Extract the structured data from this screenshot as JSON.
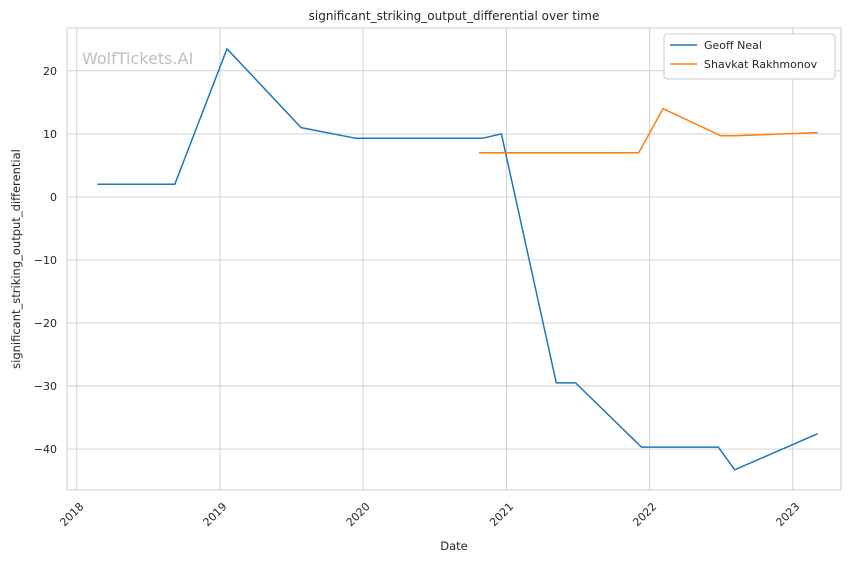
{
  "chart_data": {
    "type": "line",
    "title": "significant_striking_output_differential over time",
    "xlabel": "Date",
    "ylabel": "significant_striking_output_differential",
    "watermark": "WolfTickets.AI",
    "x_ticks": [
      "2018",
      "2019",
      "2020",
      "2021",
      "2022",
      "2023"
    ],
    "y_ticks": [
      "20",
      "10",
      "0",
      "−10",
      "−20",
      "−30",
      "−40"
    ],
    "xlim": [
      "2017-12-07",
      "2023-05-04"
    ],
    "ylim": [
      -46.5,
      26.8
    ],
    "grid": true,
    "legend_position": "top-right",
    "series": [
      {
        "name": "Geoff Neal",
        "color": "#1f77b4",
        "points": [
          {
            "date": "2018-02-24",
            "value": 2.0
          },
          {
            "date": "2018-09-08",
            "value": 2.0
          },
          {
            "date": "2019-01-19",
            "value": 23.5
          },
          {
            "date": "2019-07-27",
            "value": 11.0
          },
          {
            "date": "2019-12-14",
            "value": 9.3
          },
          {
            "date": "2020-10-31",
            "value": 9.3
          },
          {
            "date": "2020-12-19",
            "value": 10.0
          },
          {
            "date": "2021-05-08",
            "value": -29.5
          },
          {
            "date": "2021-06-26",
            "value": -29.5
          },
          {
            "date": "2021-12-11",
            "value": -39.7
          },
          {
            "date": "2022-06-25",
            "value": -39.7
          },
          {
            "date": "2022-08-06",
            "value": -43.3
          },
          {
            "date": "2023-03-04",
            "value": -37.6
          }
        ]
      },
      {
        "name": "Shavkat Rakhmonov",
        "color": "#ff7f0e",
        "points": [
          {
            "date": "2020-10-24",
            "value": 7.0
          },
          {
            "date": "2021-12-04",
            "value": 7.0
          },
          {
            "date": "2022-02-04",
            "value": 14.0
          },
          {
            "date": "2022-07-02",
            "value": 9.7
          },
          {
            "date": "2022-08-06",
            "value": 9.7
          },
          {
            "date": "2023-03-04",
            "value": 10.2
          }
        ]
      }
    ]
  }
}
